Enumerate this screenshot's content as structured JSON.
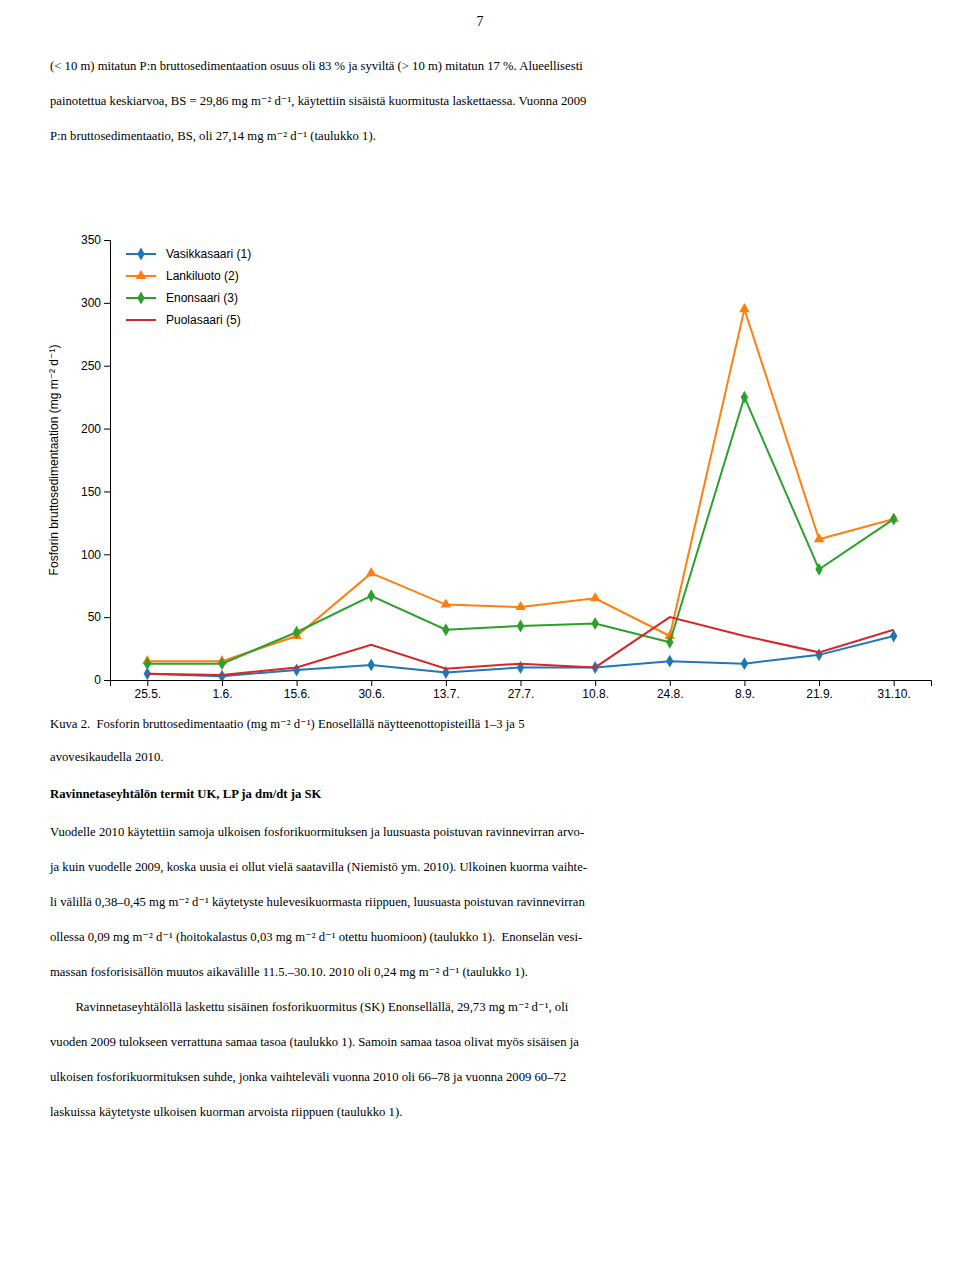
{
  "page_number": "7",
  "top_text_lines": [
    "(< 10 m) mitatun P:n bruttosedimentaation osuus oli 83 % ja syviltä (> 10 m) mitatun 17 %. Alueellisesti",
    "painotettua keskiarvoa, BS = 29,86 mg m⁻² d⁻¹, käytettiin sisäistä kuormitusta laskettaessa. Vuonna 2009",
    "P:n bruttosedimentaatio, BS, oli 27,14 mg m⁻² d⁻¹ (taulukko 1)."
  ],
  "chart_data": {
    "type": "line",
    "y_label": "Fosforin bruttosedimentaation (mg m⁻² d⁻¹)",
    "categories": [
      "25.5.",
      "1.6.",
      "15.6.",
      "30.6.",
      "13.7.",
      "27.7.",
      "10.8.",
      "24.8.",
      "8.9.",
      "21.9.",
      "31.10."
    ],
    "series": [
      {
        "name": "Vasikkasaari (1)",
        "marker": "diamond",
        "values": [
          5,
          3,
          8,
          12,
          6,
          10,
          10,
          15,
          13,
          20,
          35
        ]
      },
      {
        "name": "Lankiluoto (2)",
        "marker": "triangle",
        "values": [
          15,
          15,
          35,
          85,
          60,
          58,
          65,
          35,
          295,
          112,
          128
        ]
      },
      {
        "name": "Enonsaari (3)",
        "marker": "diamond",
        "values": [
          13,
          13,
          38,
          67,
          40,
          43,
          45,
          30,
          225,
          88,
          128
        ]
      },
      {
        "name": "Puolasaari (5)",
        "marker": "none",
        "values": [
          5,
          4,
          10,
          28,
          9,
          13,
          10,
          50,
          35,
          22,
          40
        ]
      }
    ],
    "ylim": [
      0,
      350
    ],
    "yticks": [
      0,
      50,
      100,
      150,
      200,
      250,
      300,
      350
    ],
    "grid": false,
    "legend": "upper left"
  },
  "caption_lines": [
    "Kuva 2.  Fosforin bruttosedimentaatio (mg m⁻² d⁻¹) Enosellällä näytteenottopisteillä 1–3 ja 5",
    "avovesikaudella 2010."
  ],
  "bottom_heading": "Ravinnetaseyhtälön termit UK, LP ja dm/dt ja SK",
  "bottom_text_lines": [
    "Vuodelle 2010 käytettiin samoja ulkoisen fosforikuormituksen ja luusuasta poistuvan ravinnevirran arvo-",
    "ja kuin vuodelle 2009, koska uusia ei ollut vielä saatavilla (Niemistö ym. 2010). Ulkoinen kuorma vaihte-",
    "li välillä 0,38–0,45 mg m⁻² d⁻¹ käytetyste hulevesikuormasta riippuen, luusuasta poistuvan ravinnevirran",
    "ollessa 0,09 mg m⁻² d⁻¹ (hoitokalastus 0,03 mg m⁻² d⁻¹ otettu huomioon) (taulukko 1).  Enonselän vesi-",
    "massan fosforisisällön muutos aikavälille 11.5.–30.10. 2010 oli 0,24 mg m⁻² d⁻¹ (taulukko 1).",
    "        Ravinnetaseyhtälöllä laskettu sisäinen fosforikuormitus (SK) Enonsellällä, 29,73 mg m⁻² d⁻¹, oli",
    "vuoden 2009 tulokseen verrattuna samaa tasoa (taulukko 1). Samoin samaa tasoa olivat myös sisäisen ja",
    "ulkoisen fosforikuormituksen suhde, jonka vaihteleväli vuonna 2010 oli 66–78 ja vuonna 2009 60–72",
    "laskuissa käytetyste ulkoisen kuorman arvoista riippuen (taulukko 1)."
  ]
}
